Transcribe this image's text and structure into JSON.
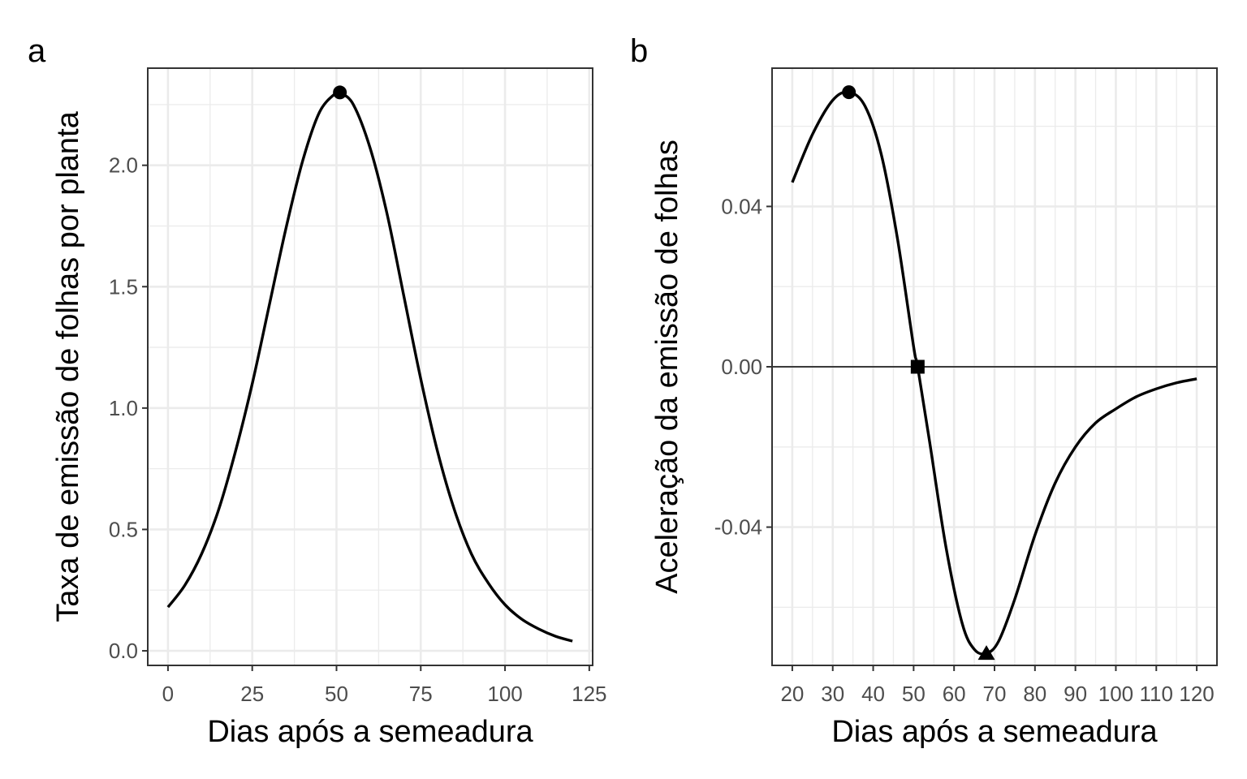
{
  "chart_data": [
    {
      "type": "line",
      "panel_tag": "a",
      "xlabel": "Dias após a semeadura",
      "ylabel": "Taxa de emissão de folhas por planta",
      "xlim": [
        -6,
        126
      ],
      "ylim": [
        -0.06,
        2.4
      ],
      "x_ticks": [
        0,
        25,
        50,
        75,
        100,
        125
      ],
      "x_tick_labels": [
        "0",
        "25",
        "50",
        "75",
        "100",
        "125"
      ],
      "x_minor_ticks": [
        12.5,
        37.5,
        62.5,
        87.5,
        112.5
      ],
      "y_ticks": [
        0.0,
        0.5,
        1.0,
        1.5,
        2.0
      ],
      "y_tick_labels": [
        "0.0",
        "0.5",
        "1.0",
        "1.5",
        "2.0"
      ],
      "y_minor_ticks": [
        0.25,
        0.75,
        1.25,
        1.75,
        2.25
      ],
      "grid": true,
      "series": [
        {
          "x": [
            0,
            5,
            10,
            15,
            20,
            25,
            30,
            35,
            40,
            45,
            50,
            51,
            55,
            60,
            65,
            70,
            75,
            80,
            85,
            90,
            95,
            100,
            105,
            110,
            115,
            120
          ],
          "y": [
            0.18,
            0.27,
            0.4,
            0.58,
            0.82,
            1.1,
            1.42,
            1.74,
            2.02,
            2.22,
            2.3,
            2.3,
            2.25,
            2.07,
            1.8,
            1.46,
            1.12,
            0.82,
            0.58,
            0.4,
            0.28,
            0.19,
            0.13,
            0.09,
            0.06,
            0.04
          ]
        }
      ],
      "markers": [
        {
          "shape": "circle",
          "x": 51,
          "y": 2.3
        }
      ]
    },
    {
      "type": "line",
      "panel_tag": "b",
      "xlabel": "Dias após a semeadura",
      "ylabel": "Aceleração da emissão de folhas",
      "xlim": [
        15,
        125
      ],
      "ylim": [
        -0.0745,
        0.0745
      ],
      "x_ticks": [
        20,
        30,
        40,
        50,
        60,
        70,
        80,
        90,
        100,
        110,
        120
      ],
      "x_tick_labels": [
        "20",
        "30",
        "40",
        "50",
        "60",
        "70",
        "80",
        "90",
        "100",
        "110",
        "120"
      ],
      "x_minor_ticks": [
        25,
        35,
        45,
        55,
        65,
        75,
        85,
        95,
        105,
        115
      ],
      "y_ticks": [
        -0.04,
        0.0,
        0.04
      ],
      "y_tick_labels": [
        "-0.04",
        "0.00",
        "0.04"
      ],
      "y_minor_ticks": [
        -0.06,
        -0.02,
        0.02,
        0.06
      ],
      "grid": true,
      "reference_line_y": 0,
      "series": [
        {
          "x": [
            20,
            25,
            30,
            34,
            38,
            42,
            46,
            50,
            51,
            54,
            58,
            62,
            65,
            68,
            71,
            75,
            80,
            85,
            90,
            95,
            100,
            105,
            110,
            115,
            120
          ],
          "y": [
            0.046,
            0.058,
            0.0665,
            0.0685,
            0.065,
            0.053,
            0.032,
            0.005,
            0.0,
            -0.019,
            -0.045,
            -0.064,
            -0.0705,
            -0.0715,
            -0.0685,
            -0.058,
            -0.042,
            -0.029,
            -0.02,
            -0.014,
            -0.0105,
            -0.0075,
            -0.0055,
            -0.004,
            -0.003
          ]
        }
      ],
      "markers": [
        {
          "shape": "circle",
          "x": 34,
          "y": 0.0685
        },
        {
          "shape": "square",
          "x": 51,
          "y": 0.0
        },
        {
          "shape": "triangle",
          "x": 68,
          "y": -0.0715
        }
      ]
    }
  ]
}
